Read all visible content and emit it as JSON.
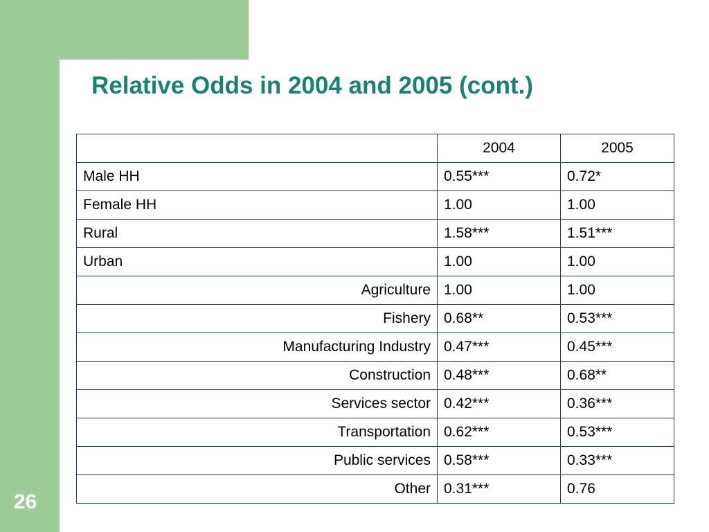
{
  "slide": {
    "title": "Relative Odds in 2004 and 2005 (cont.)",
    "number": "26"
  },
  "table": {
    "header": {
      "label": "",
      "y2004": "2004",
      "y2005": "2005"
    },
    "rows": [
      {
        "label": "Male HH",
        "align": "left",
        "y2004": "0.55***",
        "y2005": "0.72*"
      },
      {
        "label": "Female HH",
        "align": "left",
        "y2004": "1.00",
        "y2005": "1.00"
      },
      {
        "label": "Rural",
        "align": "left",
        "y2004": "1.58***",
        "y2005": "1.51***"
      },
      {
        "label": "Urban",
        "align": "left",
        "y2004": "1.00",
        "y2005": "1.00"
      },
      {
        "label": "Agriculture",
        "align": "right",
        "y2004": "1.00",
        "y2005": "1.00"
      },
      {
        "label": "Fishery",
        "align": "right",
        "y2004": "0.68**",
        "y2005": "0.53***"
      },
      {
        "label": "Manufacturing Industry",
        "align": "right",
        "y2004": "0.47***",
        "y2005": "0.45***"
      },
      {
        "label": "Construction",
        "align": "right",
        "y2004": "0.48***",
        "y2005": "0.68**"
      },
      {
        "label": "Services sector",
        "align": "right",
        "y2004": "0.42***",
        "y2005": "0.36***"
      },
      {
        "label": "Transportation",
        "align": "right",
        "y2004": "0.62***",
        "y2005": "0.53***"
      },
      {
        "label": "Public services",
        "align": "right",
        "y2004": "0.58***",
        "y2005": "0.33***"
      },
      {
        "label": "Other",
        "align": "right",
        "y2004": "0.31***",
        "y2005": "0.76"
      }
    ]
  },
  "colors": {
    "accent_green": "#9dcc99",
    "title_teal": "#1a8070",
    "table_border": "#1f3a54"
  }
}
